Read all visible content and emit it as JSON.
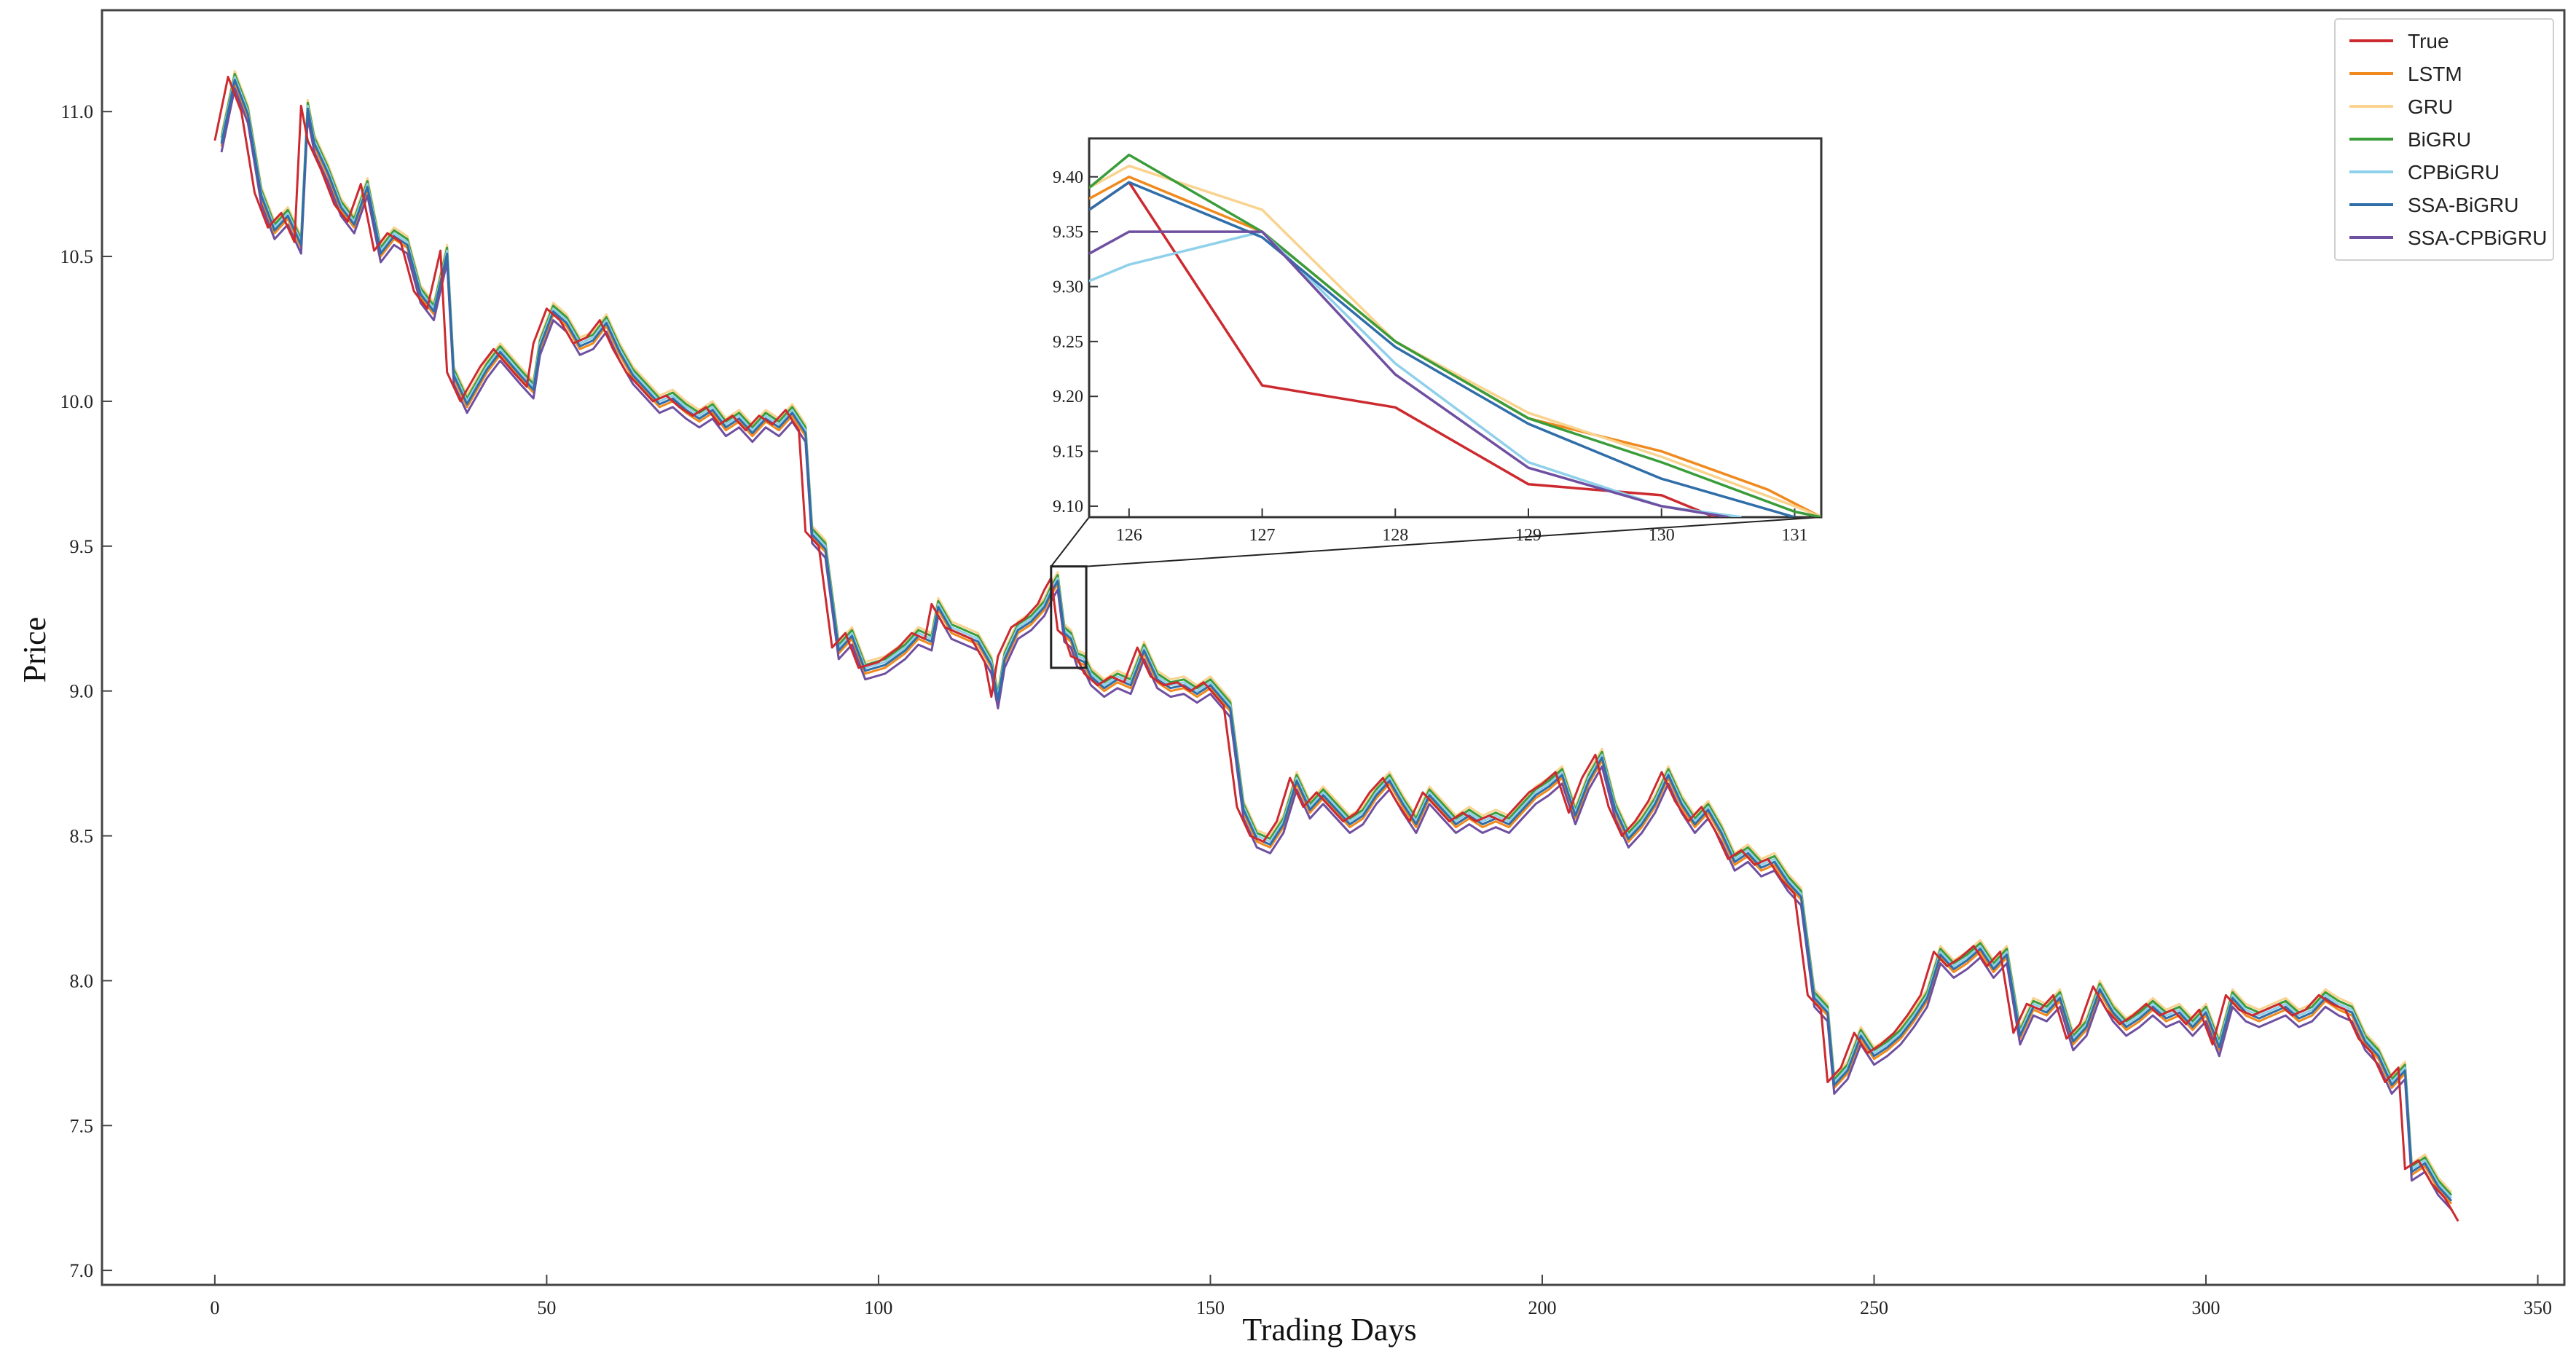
{
  "chart_data": {
    "type": "line",
    "xlabel": "Trading Days",
    "ylabel": "Price",
    "xlim": [
      -17,
      354
    ],
    "ylim": [
      6.95,
      11.35
    ],
    "xticks": [
      0,
      50,
      100,
      150,
      200,
      250,
      300,
      350
    ],
    "yticks": [
      7.0,
      7.5,
      8.0,
      8.5,
      9.0,
      9.5,
      10.0,
      10.5,
      11.0
    ],
    "ytick_labels": [
      "7.0",
      "7.5",
      "8.0",
      "8.5",
      "9.0",
      "9.5",
      "10.0",
      "10.5",
      "11.0"
    ],
    "legend_position": "top-right",
    "true_series": {
      "name": "True",
      "color": "#cc2a2f",
      "points": [
        [
          0,
          10.9
        ],
        [
          2,
          11.12
        ],
        [
          4,
          11.0
        ],
        [
          6,
          10.72
        ],
        [
          8,
          10.6
        ],
        [
          10,
          10.65
        ],
        [
          12,
          10.55
        ],
        [
          13,
          11.02
        ],
        [
          14,
          10.9
        ],
        [
          16,
          10.8
        ],
        [
          18,
          10.68
        ],
        [
          20,
          10.62
        ],
        [
          22,
          10.75
        ],
        [
          24,
          10.52
        ],
        [
          26,
          10.58
        ],
        [
          28,
          10.55
        ],
        [
          30,
          10.38
        ],
        [
          32,
          10.32
        ],
        [
          34,
          10.52
        ],
        [
          35,
          10.1
        ],
        [
          37,
          10.0
        ],
        [
          40,
          10.12
        ],
        [
          42,
          10.18
        ],
        [
          45,
          10.1
        ],
        [
          47,
          10.05
        ],
        [
          48,
          10.2
        ],
        [
          50,
          10.32
        ],
        [
          52,
          10.28
        ],
        [
          54,
          10.2
        ],
        [
          56,
          10.22
        ],
        [
          58,
          10.28
        ],
        [
          60,
          10.18
        ],
        [
          62,
          10.1
        ],
        [
          64,
          10.05
        ],
        [
          66,
          10.0
        ],
        [
          68,
          10.02
        ],
        [
          70,
          9.98
        ],
        [
          72,
          9.95
        ],
        [
          74,
          9.98
        ],
        [
          76,
          9.92
        ],
        [
          78,
          9.95
        ],
        [
          80,
          9.9
        ],
        [
          82,
          9.95
        ],
        [
          84,
          9.92
        ],
        [
          86,
          9.97
        ],
        [
          88,
          9.9
        ],
        [
          89,
          9.55
        ],
        [
          91,
          9.5
        ],
        [
          93,
          9.15
        ],
        [
          95,
          9.2
        ],
        [
          97,
          9.08
        ],
        [
          100,
          9.1
        ],
        [
          103,
          9.15
        ],
        [
          105,
          9.2
        ],
        [
          107,
          9.18
        ],
        [
          108,
          9.3
        ],
        [
          110,
          9.22
        ],
        [
          112,
          9.2
        ],
        [
          114,
          9.18
        ],
        [
          116,
          9.1
        ],
        [
          117,
          8.98
        ],
        [
          118,
          9.12
        ],
        [
          120,
          9.22
        ],
        [
          122,
          9.25
        ],
        [
          124,
          9.3
        ],
        [
          125,
          9.35
        ],
        [
          126,
          9.39
        ],
        [
          127,
          9.21
        ],
        [
          128,
          9.19
        ],
        [
          129,
          9.12
        ],
        [
          130,
          9.11
        ],
        [
          131,
          9.06
        ],
        [
          133,
          9.02
        ],
        [
          135,
          9.05
        ],
        [
          137,
          9.03
        ],
        [
          139,
          9.15
        ],
        [
          141,
          9.05
        ],
        [
          143,
          9.02
        ],
        [
          145,
          9.03
        ],
        [
          147,
          9.0
        ],
        [
          149,
          9.03
        ],
        [
          152,
          8.95
        ],
        [
          154,
          8.6
        ],
        [
          156,
          8.5
        ],
        [
          158,
          8.48
        ],
        [
          160,
          8.55
        ],
        [
          162,
          8.7
        ],
        [
          164,
          8.6
        ],
        [
          166,
          8.65
        ],
        [
          168,
          8.6
        ],
        [
          170,
          8.55
        ],
        [
          172,
          8.58
        ],
        [
          174,
          8.65
        ],
        [
          176,
          8.7
        ],
        [
          178,
          8.62
        ],
        [
          180,
          8.55
        ],
        [
          182,
          8.65
        ],
        [
          184,
          8.6
        ],
        [
          186,
          8.55
        ],
        [
          188,
          8.58
        ],
        [
          190,
          8.55
        ],
        [
          192,
          8.57
        ],
        [
          194,
          8.55
        ],
        [
          196,
          8.6
        ],
        [
          198,
          8.65
        ],
        [
          200,
          8.68
        ],
        [
          202,
          8.72
        ],
        [
          204,
          8.58
        ],
        [
          206,
          8.7
        ],
        [
          208,
          8.78
        ],
        [
          210,
          8.6
        ],
        [
          212,
          8.5
        ],
        [
          214,
          8.55
        ],
        [
          216,
          8.62
        ],
        [
          218,
          8.72
        ],
        [
          220,
          8.62
        ],
        [
          222,
          8.55
        ],
        [
          224,
          8.6
        ],
        [
          226,
          8.52
        ],
        [
          228,
          8.42
        ],
        [
          230,
          8.45
        ],
        [
          232,
          8.4
        ],
        [
          234,
          8.42
        ],
        [
          236,
          8.35
        ],
        [
          238,
          8.3
        ],
        [
          240,
          7.95
        ],
        [
          242,
          7.9
        ],
        [
          243,
          7.65
        ],
        [
          245,
          7.7
        ],
        [
          247,
          7.82
        ],
        [
          249,
          7.75
        ],
        [
          251,
          7.78
        ],
        [
          253,
          7.82
        ],
        [
          255,
          7.88
        ],
        [
          257,
          7.95
        ],
        [
          259,
          8.1
        ],
        [
          261,
          8.05
        ],
        [
          263,
          8.08
        ],
        [
          265,
          8.12
        ],
        [
          267,
          8.05
        ],
        [
          269,
          8.1
        ],
        [
          271,
          7.82
        ],
        [
          273,
          7.92
        ],
        [
          275,
          7.9
        ],
        [
          277,
          7.95
        ],
        [
          279,
          7.8
        ],
        [
          281,
          7.85
        ],
        [
          283,
          7.98
        ],
        [
          285,
          7.9
        ],
        [
          287,
          7.85
        ],
        [
          289,
          7.88
        ],
        [
          291,
          7.92
        ],
        [
          293,
          7.88
        ],
        [
          295,
          7.9
        ],
        [
          297,
          7.85
        ],
        [
          299,
          7.9
        ],
        [
          301,
          7.78
        ],
        [
          303,
          7.95
        ],
        [
          305,
          7.9
        ],
        [
          307,
          7.88
        ],
        [
          309,
          7.9
        ],
        [
          311,
          7.92
        ],
        [
          313,
          7.88
        ],
        [
          315,
          7.9
        ],
        [
          317,
          7.95
        ],
        [
          319,
          7.92
        ],
        [
          321,
          7.9
        ],
        [
          323,
          7.8
        ],
        [
          325,
          7.75
        ],
        [
          327,
          7.65
        ],
        [
          329,
          7.7
        ],
        [
          330,
          7.35
        ],
        [
          332,
          7.38
        ],
        [
          334,
          7.3
        ],
        [
          336,
          7.25
        ],
        [
          338,
          7.17
        ]
      ]
    },
    "series": [
      {
        "name": "True",
        "color": "#cc2a2f",
        "offset": 0,
        "lag": 0,
        "width": 3
      },
      {
        "name": "LSTM",
        "color": "#f08a1e",
        "offset": -0.02,
        "lag": 1,
        "width": 3
      },
      {
        "name": "GRU",
        "color": "#f9d38f",
        "offset": 0.02,
        "lag": 1,
        "width": 3
      },
      {
        "name": "BiGRU",
        "color": "#3a9c3a",
        "offset": 0.01,
        "lag": 1,
        "width": 3
      },
      {
        "name": "CPBiGRU",
        "color": "#8fd0ea",
        "offset": 0.0,
        "lag": 1,
        "width": 3
      },
      {
        "name": "SSA-BiGRU",
        "color": "#2f6ea8",
        "offset": -0.01,
        "lag": 1,
        "width": 3
      },
      {
        "name": "SSA-CPBiGRU",
        "color": "#6f4fa0",
        "offset": -0.04,
        "lag": 1,
        "width": 3
      }
    ],
    "inset": {
      "xlim": [
        125.7,
        131.2
      ],
      "ylim": [
        9.09,
        9.435
      ],
      "xticks": [
        126,
        127,
        128,
        129,
        130,
        131
      ],
      "yticks": [
        9.1,
        9.15,
        9.2,
        9.25,
        9.3,
        9.35,
        9.4
      ],
      "ytick_labels": [
        "9.10",
        "9.15",
        "9.20",
        "9.25",
        "9.30",
        "9.35",
        "9.40"
      ],
      "zoom_box_x": [
        126,
        131.3
      ],
      "zoom_box_y": [
        9.08,
        9.43
      ],
      "series": [
        {
          "name": "True",
          "points": [
            [
              125.7,
              9.37
            ],
            [
              126,
              9.395
            ],
            [
              127,
              9.21
            ],
            [
              128,
              9.19
            ],
            [
              129,
              9.12
            ],
            [
              130,
              9.11
            ],
            [
              130.4,
              9.09
            ]
          ]
        },
        {
          "name": "LSTM",
          "points": [
            [
              125.7,
              9.38
            ],
            [
              126,
              9.4
            ],
            [
              127,
              9.35
            ],
            [
              128,
              9.25
            ],
            [
              129,
              9.18
            ],
            [
              130,
              9.15
            ],
            [
              130.8,
              9.115
            ],
            [
              131.2,
              9.09
            ]
          ]
        },
        {
          "name": "GRU",
          "points": [
            [
              125.7,
              9.39
            ],
            [
              126,
              9.41
            ],
            [
              127,
              9.37
            ],
            [
              128,
              9.25
            ],
            [
              129,
              9.185
            ],
            [
              130,
              9.145
            ],
            [
              131,
              9.1
            ],
            [
              131.2,
              9.09
            ]
          ]
        },
        {
          "name": "BiGRU",
          "points": [
            [
              125.7,
              9.39
            ],
            [
              126,
              9.42
            ],
            [
              127,
              9.35
            ],
            [
              128,
              9.25
            ],
            [
              129,
              9.18
            ],
            [
              130,
              9.14
            ],
            [
              131,
              9.095
            ],
            [
              131.2,
              9.09
            ]
          ]
        },
        {
          "name": "CPBiGRU",
          "points": [
            [
              125.7,
              9.305
            ],
            [
              126,
              9.32
            ],
            [
              127,
              9.35
            ],
            [
              128,
              9.23
            ],
            [
              129,
              9.14
            ],
            [
              130,
              9.1
            ],
            [
              130.6,
              9.09
            ]
          ]
        },
        {
          "name": "SSA-BiGRU",
          "points": [
            [
              125.7,
              9.37
            ],
            [
              126,
              9.395
            ],
            [
              127,
              9.345
            ],
            [
              128,
              9.245
            ],
            [
              129,
              9.175
            ],
            [
              130,
              9.125
            ],
            [
              131,
              9.09
            ]
          ]
        },
        {
          "name": "SSA-CPBiGRU",
          "points": [
            [
              125.7,
              9.33
            ],
            [
              126,
              9.35
            ],
            [
              127,
              9.35
            ],
            [
              128,
              9.22
            ],
            [
              129,
              9.135
            ],
            [
              130,
              9.1
            ],
            [
              130.5,
              9.09
            ]
          ]
        }
      ]
    }
  }
}
